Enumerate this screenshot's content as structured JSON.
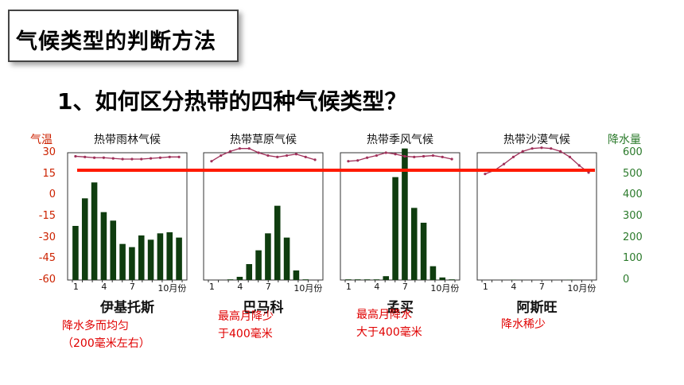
{
  "heading": "气候类型的判断方法",
  "question": "1、如何区分热带的四种气候类型？",
  "left_axis": {
    "label": "气温",
    "ticks": [
      "30",
      "15",
      "0",
      "-15",
      "-30",
      "-45",
      "-60"
    ]
  },
  "right_axis": {
    "label": "降水量",
    "ticks": [
      "600",
      "500",
      "400",
      "300",
      "200",
      "100",
      "0"
    ]
  },
  "x_ticks": [
    "1",
    "4",
    "7",
    "10月份"
  ],
  "colors": {
    "bar": "#0f3d0f",
    "temp_line": "#a0305a",
    "highlight_line": "#ff1a00",
    "note": "#e00000"
  },
  "chart_data": [
    {
      "type": "bar",
      "title": "热带雨林气候",
      "city": "伊基托斯",
      "months": [
        1,
        2,
        3,
        4,
        5,
        6,
        7,
        8,
        9,
        10,
        11,
        12
      ],
      "precipitation": [
        255,
        385,
        460,
        320,
        280,
        170,
        155,
        210,
        190,
        220,
        225,
        200
      ],
      "temperature": [
        27.5,
        27,
        26.5,
        26.5,
        26,
        25.5,
        25.5,
        25.5,
        26,
        26.5,
        27,
        27
      ],
      "note": [
        "降水多而均匀",
        "（200毫米左右）"
      ]
    },
    {
      "type": "bar",
      "title": "热带草原气候",
      "city": "巴马科",
      "months": [
        1,
        2,
        3,
        4,
        5,
        6,
        7,
        8,
        9,
        10,
        11,
        12
      ],
      "precipitation": [
        0,
        0,
        3,
        15,
        75,
        140,
        220,
        350,
        200,
        45,
        3,
        0
      ],
      "temperature": [
        24,
        28,
        31,
        33,
        33,
        30,
        28,
        27,
        28,
        29,
        27,
        25
      ],
      "note": [
        "最高月降少",
        "于400毫米"
      ]
    },
    {
      "type": "bar",
      "title": "热带季风气候",
      "city": "孟买",
      "months": [
        1,
        2,
        3,
        4,
        5,
        6,
        7,
        8,
        9,
        10,
        11,
        12
      ],
      "precipitation": [
        3,
        3,
        3,
        3,
        18,
        485,
        620,
        340,
        270,
        65,
        12,
        3
      ],
      "temperature": [
        24,
        24.5,
        26.5,
        28,
        30,
        29,
        27.5,
        27,
        27.5,
        28,
        27,
        25.5
      ],
      "note": [
        "最高月降水",
        "大于400毫米"
      ]
    },
    {
      "type": "bar",
      "title": "热带沙漠气候",
      "city": "阿斯旺",
      "months": [
        1,
        2,
        3,
        4,
        5,
        6,
        7,
        8,
        9,
        10,
        11,
        12
      ],
      "precipitation": [
        0,
        0,
        0,
        1,
        0,
        0,
        0,
        0,
        0,
        1,
        0,
        0
      ],
      "temperature": [
        15,
        17.5,
        22,
        27,
        31,
        33,
        33.5,
        33,
        31,
        27,
        21,
        16
      ],
      "note": [
        "降水稀少"
      ]
    }
  ]
}
